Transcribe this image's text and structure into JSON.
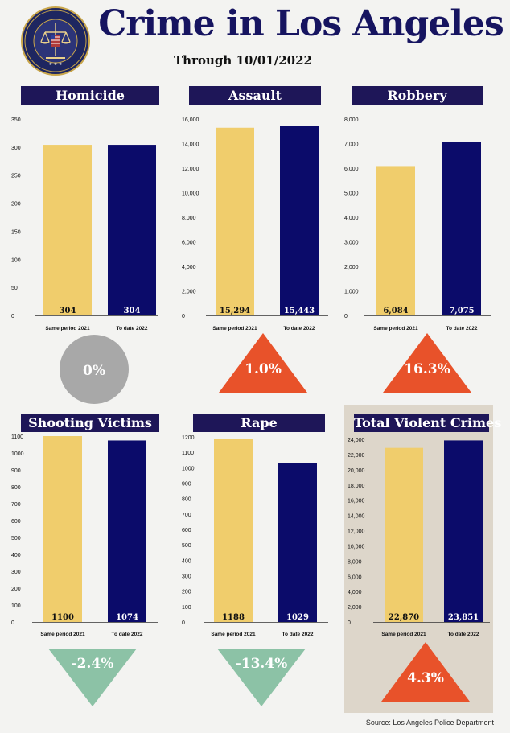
{
  "header": {
    "title": "Crime in Los Angeles",
    "subtitle": "Through 10/01/2022",
    "seal_text_top": "LOS ANGELES POLICE DEPARTMENT",
    "seal_text_bottom": "TO PROTECT AND TO SERVE"
  },
  "colors": {
    "series_2021": "#f0cd6c",
    "series_2022": "#0b0b6a",
    "panel_title_bg": "#1e1658",
    "increase": "#e8522a",
    "decrease": "#8cc2a6",
    "neutral": "#a8a8a8",
    "total_panel_bg": "#ddd6ca"
  },
  "source": "Source: Los Angeles Police Department",
  "chart_data": [
    {
      "type": "bar",
      "title": "Homicide",
      "categories": [
        "Same period 2021",
        "To date 2022"
      ],
      "values": [
        304,
        304
      ],
      "value_labels": [
        "304",
        "304"
      ],
      "ylim": [
        0,
        350
      ],
      "yticks": [
        "0",
        "50",
        "100",
        "150",
        "200",
        "250",
        "300",
        "350"
      ],
      "change": "0%",
      "direction": "neutral"
    },
    {
      "type": "bar",
      "title": "Assault",
      "categories": [
        "Same period 2021",
        "To date 2022"
      ],
      "values": [
        15294,
        15443
      ],
      "value_labels": [
        "15,294",
        "15,443"
      ],
      "ylim": [
        0,
        16000
      ],
      "yticks": [
        "0",
        "2,000",
        "4,000",
        "6,000",
        "8,000",
        "10,000",
        "12,000",
        "14,000",
        "16,000"
      ],
      "change": "1.0%",
      "direction": "up"
    },
    {
      "type": "bar",
      "title": "Robbery",
      "categories": [
        "Same period 2021",
        "To date 2022"
      ],
      "values": [
        6084,
        7075
      ],
      "value_labels": [
        "6,084",
        "7,075"
      ],
      "ylim": [
        0,
        8000
      ],
      "yticks": [
        "0",
        "1,000",
        "2,000",
        "3,000",
        "4,000",
        "5,000",
        "6,000",
        "7,000",
        "8,000"
      ],
      "change": "16.3%",
      "direction": "up"
    },
    {
      "type": "bar",
      "title": "Shooting Victims",
      "categories": [
        "Same period 2021",
        "To date 2022"
      ],
      "values": [
        1100,
        1074
      ],
      "value_labels": [
        "1100",
        "1074"
      ],
      "ylim": [
        0,
        1100
      ],
      "yticks": [
        "0",
        "100",
        "200",
        "300",
        "400",
        "500",
        "600",
        "700",
        "800",
        "900",
        "1000",
        "1100"
      ],
      "change": "-2.4%",
      "direction": "down"
    },
    {
      "type": "bar",
      "title": "Rape",
      "categories": [
        "Same period 2021",
        "To date 2022"
      ],
      "values": [
        1188,
        1029
      ],
      "value_labels": [
        "1188",
        "1029"
      ],
      "ylim": [
        0,
        1200
      ],
      "yticks": [
        "0",
        "100",
        "200",
        "300",
        "400",
        "500",
        "600",
        "700",
        "800",
        "900",
        "1000",
        "1100",
        "1200"
      ],
      "change": "-13.4%",
      "direction": "down"
    },
    {
      "type": "bar",
      "title": "Total Violent Crimes",
      "categories": [
        "Same period 2021",
        "To date 2022"
      ],
      "values": [
        22870,
        23851
      ],
      "value_labels": [
        "22,870",
        "23,851"
      ],
      "ylim": [
        0,
        24000
      ],
      "yticks": [
        "0",
        "2,000",
        "4,000",
        "6,000",
        "8,000",
        "10,000",
        "12,000",
        "14,000",
        "16,000",
        "18,000",
        "20,000",
        "22,000",
        "24,000"
      ],
      "change": "4.3%",
      "direction": "up"
    }
  ]
}
